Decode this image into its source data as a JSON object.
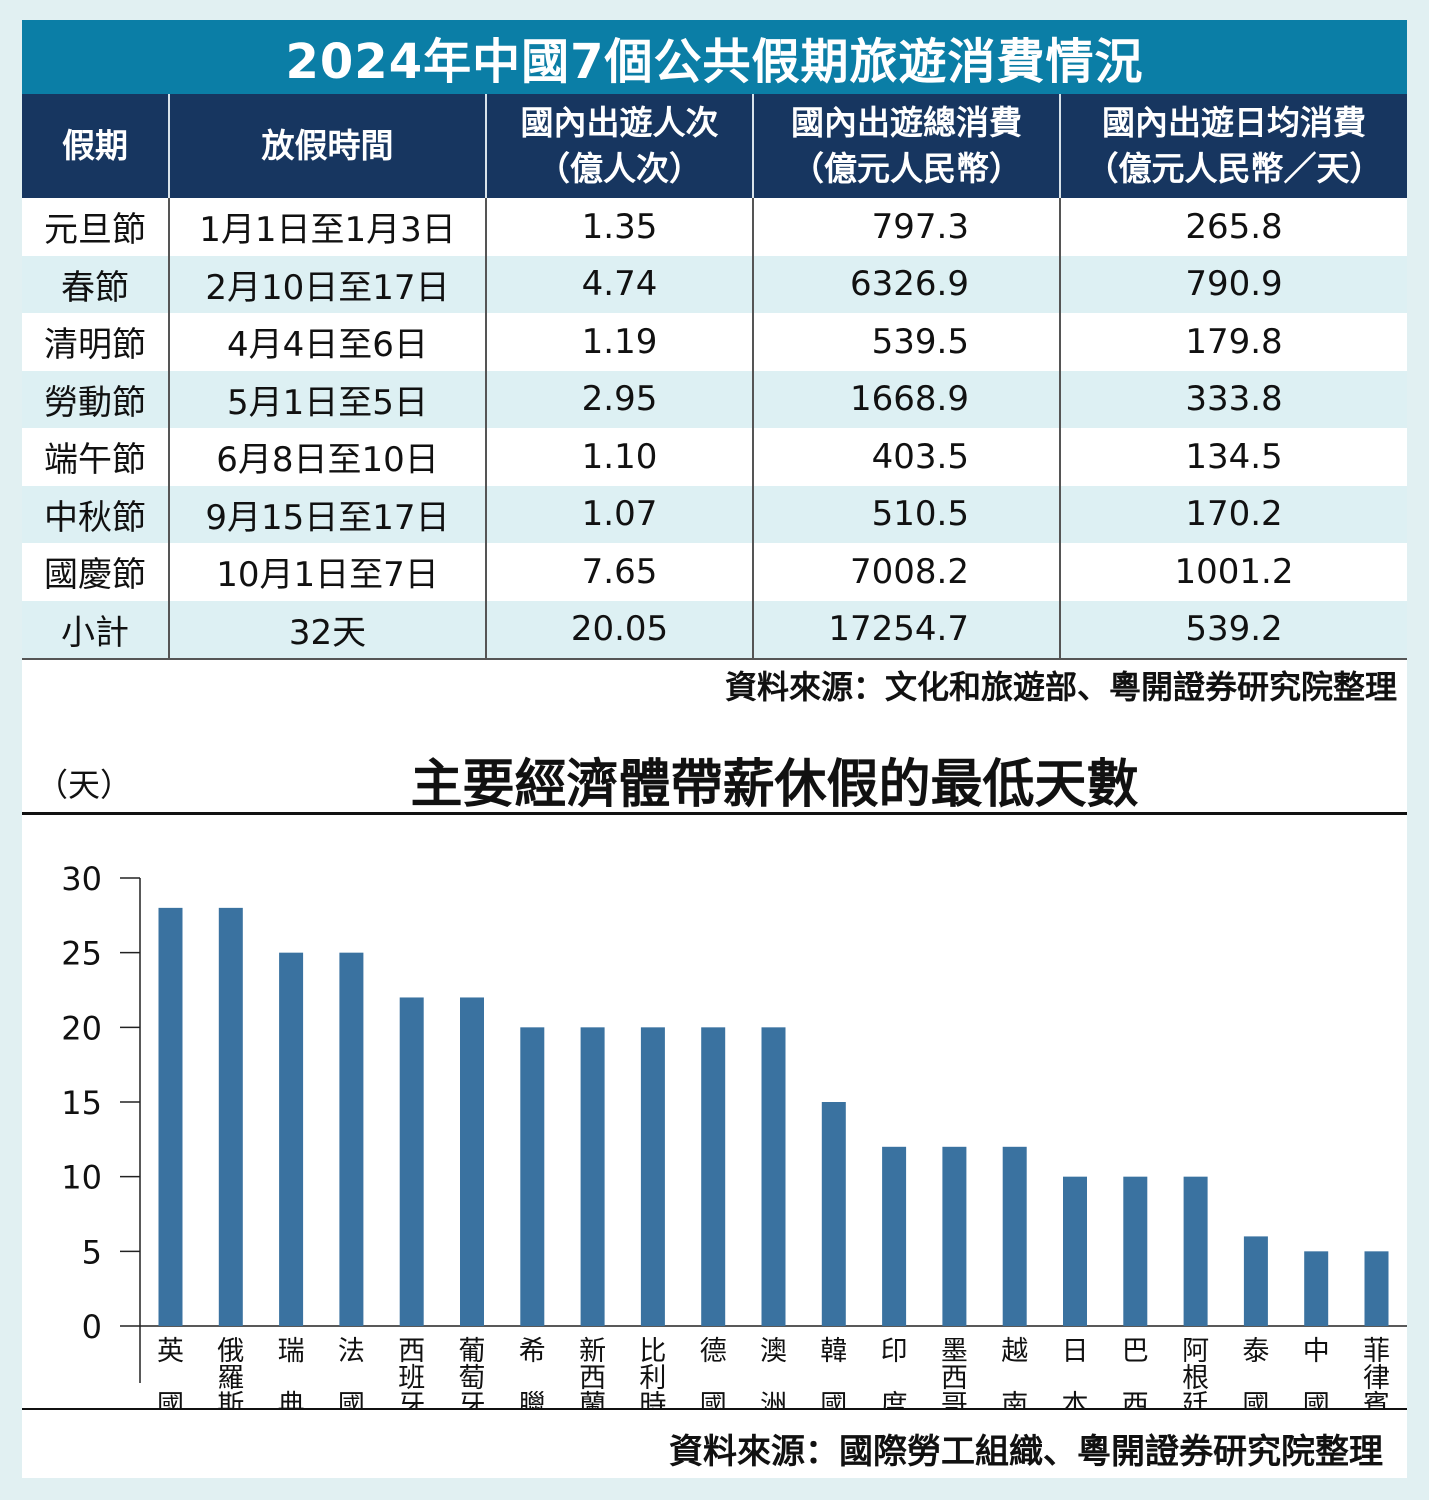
{
  "table": {
    "title": "2024年中國7個公共假期旅遊消費情況",
    "headers": [
      {
        "line1": "假期",
        "line2": ""
      },
      {
        "line1": "放假時間",
        "line2": ""
      },
      {
        "line1": "國內出遊人次",
        "line2": "（億人次）"
      },
      {
        "line1": "國內出遊總消費",
        "line2": "（億元人民幣）"
      },
      {
        "line1": "國內出遊日均消費",
        "line2": "（億元人民幣／天）"
      }
    ],
    "rows": [
      {
        "holiday": "元旦節",
        "period": "1月1日至1月3日",
        "trips": "1.35",
        "total": "797.3",
        "daily": "265.8"
      },
      {
        "holiday": "春節",
        "period": "2月10日至17日",
        "trips": "4.74",
        "total": "6326.9",
        "daily": "790.9"
      },
      {
        "holiday": "清明節",
        "period": "4月4日至6日",
        "trips": "1.19",
        "total": "539.5",
        "daily": "179.8"
      },
      {
        "holiday": "勞動節",
        "period": "5月1日至5日",
        "trips": "2.95",
        "total": "1668.9",
        "daily": "333.8"
      },
      {
        "holiday": "端午節",
        "period": "6月8日至10日",
        "trips": "1.10",
        "total": "403.5",
        "daily": "134.5"
      },
      {
        "holiday": "中秋節",
        "period": "9月15日至17日",
        "trips": "1.07",
        "total": "510.5",
        "daily": "170.2"
      },
      {
        "holiday": "國慶節",
        "period": "10月1日至7日",
        "trips": "7.65",
        "total": "7008.2",
        "daily": "1001.2"
      },
      {
        "holiday": "小計",
        "period": "32天",
        "trips": "20.05",
        "total": "17254.7",
        "daily": "539.2"
      }
    ],
    "source": "資料來源：文化和旅遊部、粵開證券研究院整理",
    "colors": {
      "title_bg": "#0b7ea6",
      "header_bg": "#173660",
      "stripe": "#ddf0f3"
    }
  },
  "chart_data": {
    "type": "bar",
    "title": "主要經濟體帶薪休假的最低天數",
    "ylabel": "（天）",
    "xlabel": "",
    "ylim": [
      0,
      30
    ],
    "yticks": [
      0,
      5,
      10,
      15,
      20,
      25,
      30
    ],
    "categories": [
      "英國",
      "俄羅斯",
      "瑞典",
      "法國",
      "西班牙",
      "葡萄牙",
      "希臘",
      "新西蘭",
      "比利時",
      "德國",
      "澳洲",
      "韓國",
      "印度",
      "墨西哥",
      "越南",
      "日本",
      "巴西",
      "阿根廷",
      "泰國",
      "中國",
      "菲律賓"
    ],
    "values": [
      28,
      28,
      25,
      25,
      22,
      22,
      20,
      20,
      20,
      20,
      20,
      15,
      12,
      12,
      12,
      10,
      10,
      10,
      6,
      5,
      5
    ],
    "grid": false,
    "legend": "none",
    "bar_color": "#3a72a0",
    "source": "資料來源：國際勞工組織、粵開證券研究院整理"
  }
}
